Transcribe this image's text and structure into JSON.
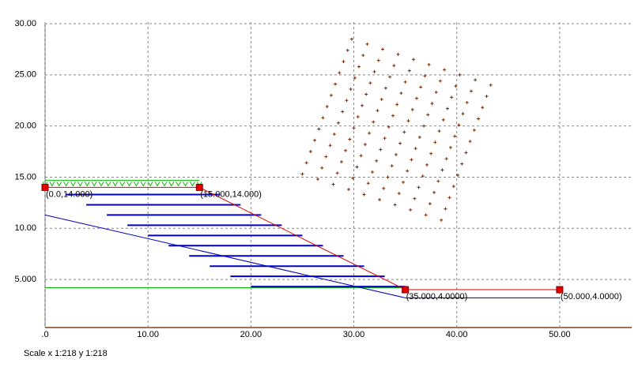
{
  "chart_data": {
    "type": "slope",
    "xlim": [
      0,
      57
    ],
    "ylim": [
      0.3,
      30
    ],
    "xticks": [
      {
        "value": 0,
        "label": ".0"
      },
      {
        "value": 10,
        "label": "10.00"
      },
      {
        "value": 20,
        "label": "20.00"
      },
      {
        "value": 30,
        "label": "30.00"
      },
      {
        "value": 40,
        "label": "40.00"
      },
      {
        "value": 50,
        "label": "50.00"
      }
    ],
    "yticks": [
      {
        "value": 5,
        "label": "5.000"
      },
      {
        "value": 10,
        "label": "10.00"
      },
      {
        "value": 15,
        "label": "15.00"
      },
      {
        "value": 20,
        "label": "20.00"
      },
      {
        "value": 25,
        "label": "25.00"
      },
      {
        "value": 30,
        "label": "30.00"
      }
    ],
    "grid": true,
    "scale_text": "Scale x 1:218  y 1:218",
    "profile": {
      "color": "#e00000",
      "x": [
        0,
        15,
        35,
        50
      ],
      "y": [
        14,
        14,
        4,
        4
      ],
      "labels": [
        "(0.0,14.000)",
        "(15.000,14.000)",
        "(35.000,4.0000)",
        "(50.000,4.0000)"
      ]
    },
    "layer": {
      "color": "#0000c0",
      "x": [
        0,
        35,
        50
      ],
      "y": [
        11.3,
        3.2,
        3.2
      ]
    },
    "water": {
      "color": "#00c000",
      "x": [
        0,
        35
      ],
      "y": [
        4.2,
        4.2
      ]
    },
    "reinforcements": {
      "color": "#0000cc",
      "x1": [
        2,
        4,
        6,
        8,
        10,
        12,
        14,
        16,
        18,
        20
      ],
      "x2": [
        17,
        19,
        21,
        23,
        25,
        27,
        29,
        31,
        33,
        35
      ],
      "y": [
        13.3,
        12.3,
        11.3,
        10.3,
        9.3,
        8.3,
        7.3,
        6.3,
        5.3,
        4.3
      ]
    },
    "centers": {
      "color": "#7a2a00",
      "x": [
        29.8,
        31.3,
        32.8,
        34.3,
        35.8,
        37.3,
        38.8,
        40.3,
        41.8,
        43.3,
        29.4,
        30.9,
        32.4,
        33.9,
        35.4,
        36.9,
        38.4,
        39.9,
        41.4,
        42.9,
        29,
        30.5,
        32,
        33.5,
        35,
        36.5,
        38,
        39.5,
        41,
        42.5,
        28.6,
        30.1,
        31.6,
        33.1,
        34.6,
        36.1,
        37.6,
        39.1,
        40.6,
        42.1,
        28.2,
        29.7,
        31.2,
        32.7,
        34.2,
        35.7,
        37.2,
        38.7,
        40.2,
        41.7,
        27.8,
        29.3,
        30.8,
        32.3,
        33.8,
        35.3,
        36.8,
        38.3,
        39.8,
        41.3,
        27.4,
        28.9,
        30.4,
        31.9,
        33.4,
        34.9,
        36.4,
        37.9,
        39.4,
        40.9,
        27,
        28.5,
        30,
        31.5,
        33,
        34.5,
        36,
        37.5,
        39,
        40.5,
        26.6,
        28.1,
        29.6,
        31.1,
        32.6,
        34.1,
        35.6,
        37.1,
        38.6,
        40.1,
        26.2,
        27.7,
        29.2,
        30.7,
        32.2,
        33.7,
        35.2,
        36.7,
        38.2,
        39.7,
        25.8,
        27.3,
        28.8,
        30.3,
        31.8,
        33.3,
        34.8,
        36.3,
        37.8,
        39.3,
        25.4,
        26.9,
        28.4,
        29.9,
        31.4,
        32.9,
        34.4,
        35.9,
        37.4,
        38.9,
        25,
        26.5,
        28,
        29.5,
        31,
        32.5,
        34,
        35.5,
        37,
        38.5
      ],
      "y": [
        28.5,
        28,
        27.5,
        27,
        26.5,
        26,
        25.5,
        25,
        24.5,
        24,
        27.4,
        26.9,
        26.4,
        25.9,
        25.4,
        24.9,
        24.4,
        23.9,
        23.4,
        22.9,
        26.3,
        25.8,
        25.3,
        24.8,
        24.3,
        23.8,
        23.3,
        22.8,
        22.3,
        21.8,
        25.2,
        24.7,
        24.2,
        23.7,
        23.2,
        22.7,
        22.2,
        21.7,
        21.2,
        20.7,
        24.1,
        23.6,
        23.1,
        22.6,
        22.1,
        21.6,
        21.1,
        20.6,
        20.1,
        19.6,
        23,
        22.5,
        22,
        21.5,
        21,
        20.5,
        20,
        19.5,
        19,
        18.5,
        21.9,
        21.4,
        20.9,
        20.4,
        19.9,
        19.4,
        18.9,
        18.4,
        17.9,
        17.4,
        20.8,
        20.3,
        19.8,
        19.3,
        18.8,
        18.3,
        17.8,
        17.3,
        16.8,
        16.3,
        19.7,
        19.2,
        18.7,
        18.2,
        17.7,
        17.2,
        16.7,
        16.2,
        15.7,
        15.2,
        18.6,
        18.1,
        17.6,
        17.1,
        16.6,
        16.1,
        15.6,
        15.1,
        14.6,
        14.1,
        17.5,
        17,
        16.5,
        16,
        15.5,
        15,
        14.5,
        14,
        13.5,
        13,
        16.4,
        15.9,
        15.4,
        14.9,
        14.4,
        13.9,
        13.4,
        12.9,
        12.4,
        11.9,
        15.3,
        14.8,
        14.3,
        13.8,
        13.3,
        12.8,
        12.3,
        11.8,
        11.3,
        10.8
      ]
    }
  }
}
